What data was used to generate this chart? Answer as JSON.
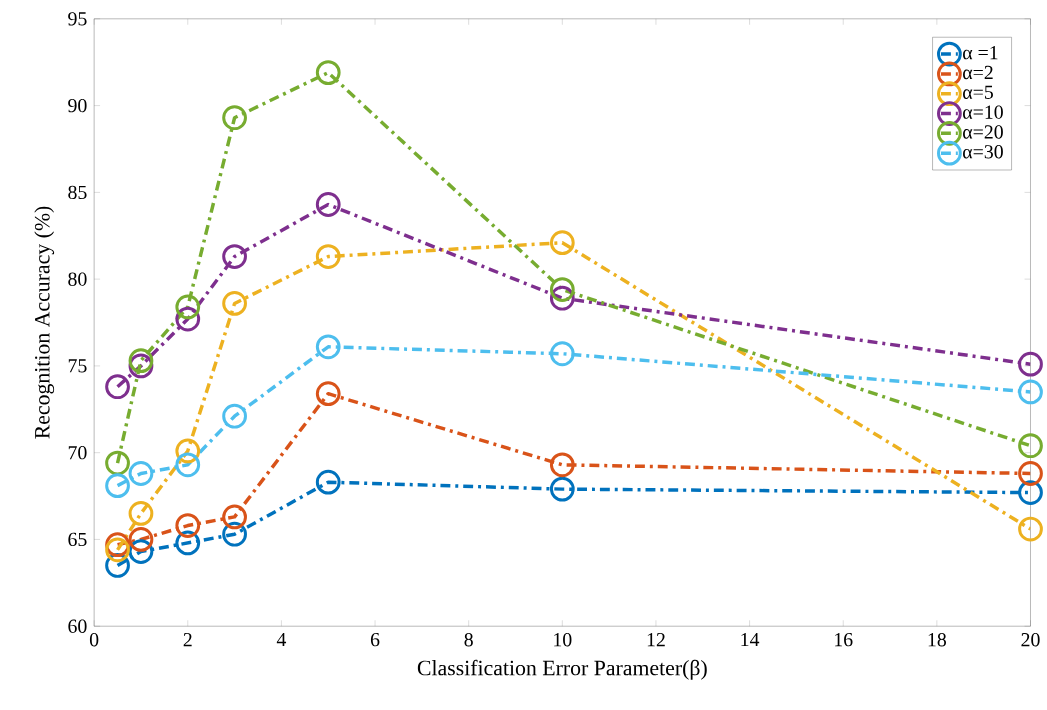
{
  "chart_data": {
    "type": "line",
    "xlabel": "Classification Error Parameter(β)",
    "ylabel": "Recognition Accuracy (%)",
    "x": [
      0.5,
      1,
      2,
      3,
      5,
      10,
      20
    ],
    "series": [
      {
        "name": "α =1",
        "color": "#0072bd",
        "values": [
          63.5,
          64.3,
          64.8,
          65.3,
          68.3,
          67.9,
          67.7
        ]
      },
      {
        "name": "α=2",
        "color": "#d95319",
        "values": [
          64.7,
          65.0,
          65.8,
          66.3,
          73.4,
          69.3,
          68.8
        ]
      },
      {
        "name": "α=5",
        "color": "#edb120",
        "values": [
          64.4,
          66.5,
          70.1,
          78.6,
          81.3,
          82.1,
          65.6
        ]
      },
      {
        "name": "α=10",
        "color": "#7e2f8e",
        "values": [
          73.8,
          75.0,
          77.7,
          81.3,
          84.3,
          78.9,
          75.1
        ]
      },
      {
        "name": "α=20",
        "color": "#77ac30",
        "values": [
          69.4,
          75.3,
          78.4,
          89.3,
          91.9,
          79.4,
          70.4
        ]
      },
      {
        "name": "α=30",
        "color": "#4dbeee",
        "values": [
          68.1,
          68.8,
          69.3,
          72.1,
          76.1,
          75.7,
          73.5
        ]
      }
    ],
    "xlim": [
      0,
      20
    ],
    "xticks": [
      0,
      2,
      4,
      6,
      8,
      10,
      12,
      14,
      16,
      18,
      20
    ],
    "ylim": [
      60,
      95
    ],
    "yticks": [
      60,
      65,
      70,
      75,
      80,
      85,
      90,
      95
    ],
    "legend": "top right",
    "marker": "circle",
    "line_style": "dashed",
    "grid": false
  }
}
